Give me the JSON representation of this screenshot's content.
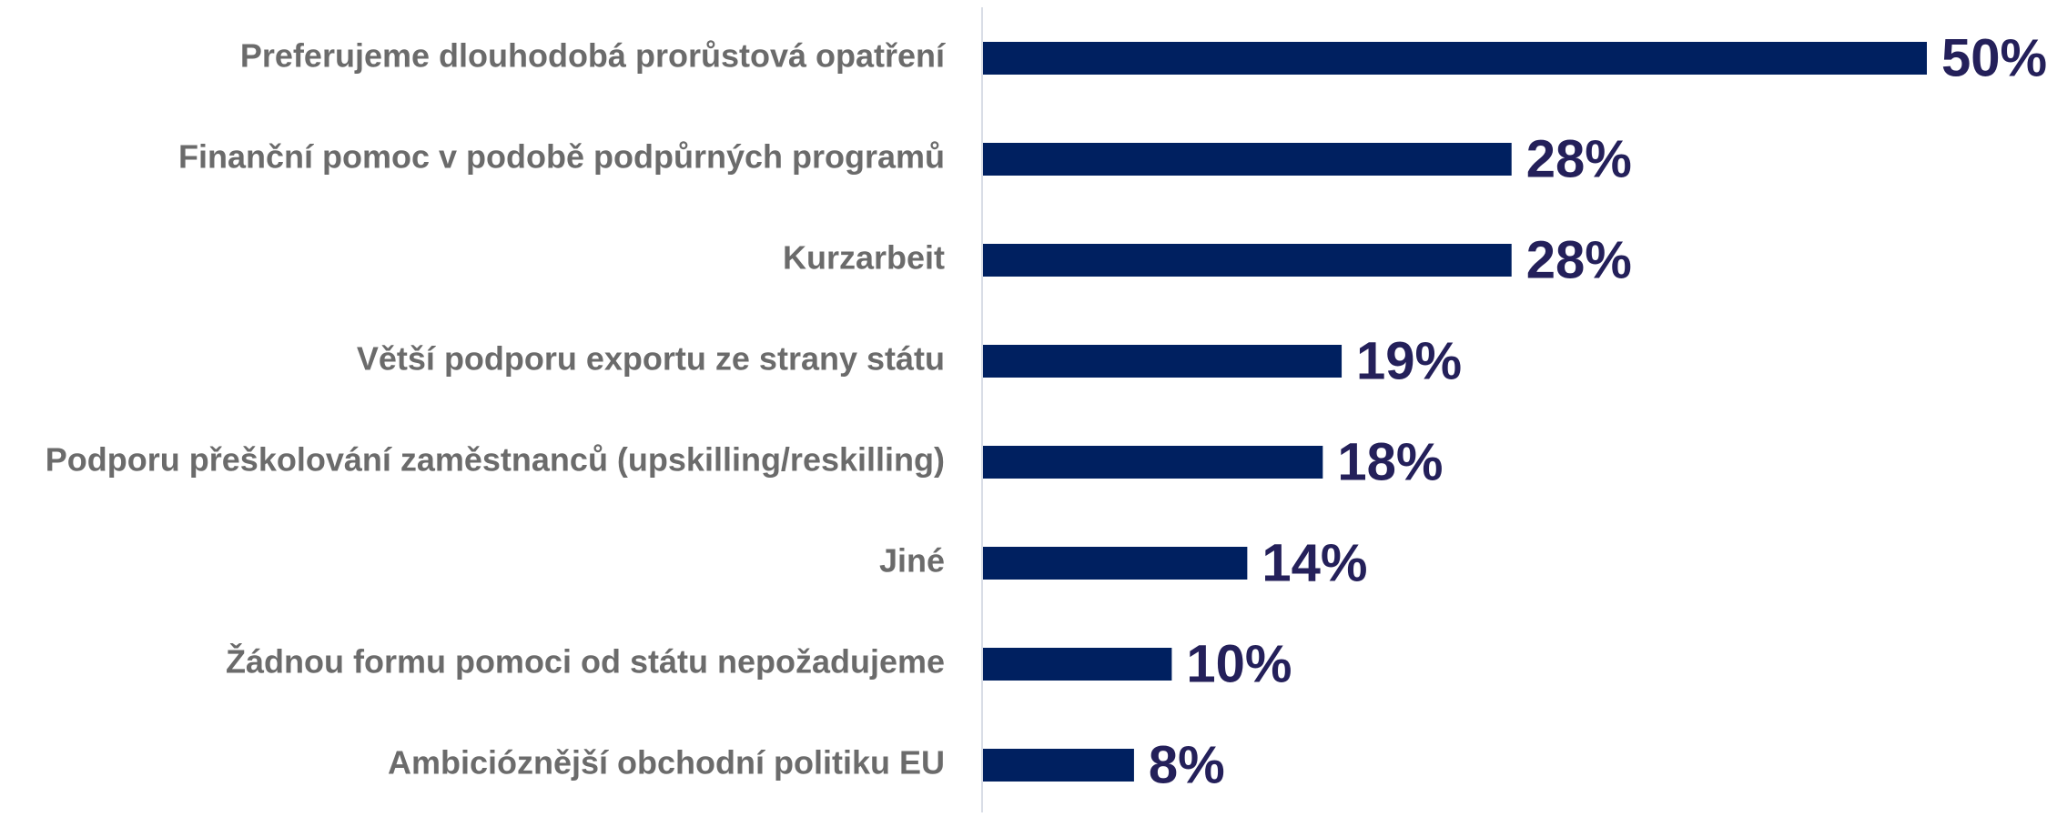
{
  "chart_data": {
    "type": "bar",
    "orientation": "horizontal",
    "categories": [
      "Preferujeme dlouhodobá prorůstová opatření",
      "Finanční pomoc v podobě podpůrných programů",
      "Kurzarbeit",
      "Větší podporu exportu ze strany státu",
      "Podporu přeškolování zaměstnanců (upskilling/reskilling)",
      "Jiné",
      "Žádnou formu pomoci od státu nepožadujeme",
      "Ambicióznější obchodní politiku EU"
    ],
    "values": [
      50,
      28,
      28,
      19,
      18,
      14,
      10,
      8
    ],
    "value_labels": [
      "50%",
      "28%",
      "28%",
      "19%",
      "18%",
      "14%",
      "10%",
      "8%"
    ],
    "color": "#002060",
    "xlim": [
      0,
      50
    ]
  }
}
